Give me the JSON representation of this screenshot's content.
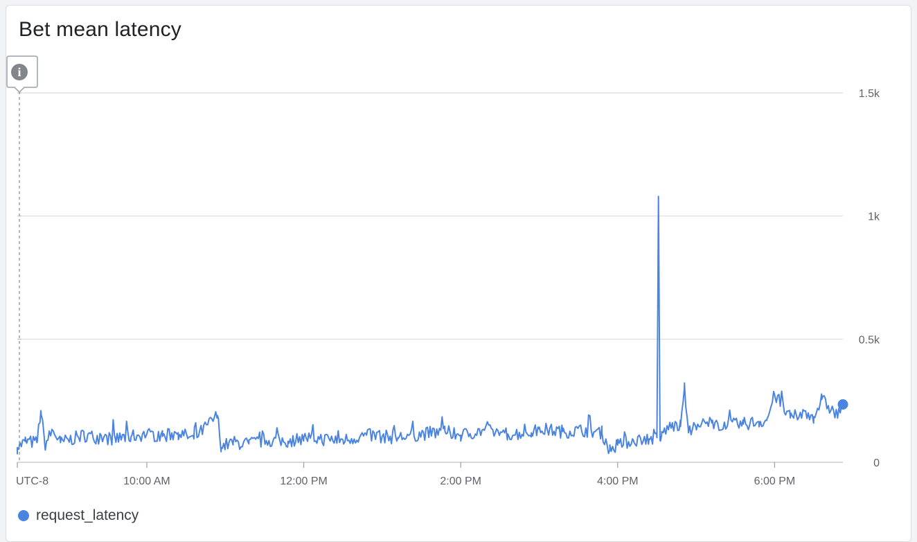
{
  "title": "Bet mean latency",
  "timezone_label": "UTC-8",
  "colors": {
    "series": "#4a84e0",
    "grid": "#dadce0",
    "text": "#5f6368",
    "info_icon": "#80868b"
  },
  "info_icon": "info-icon",
  "chart_data": {
    "type": "line",
    "x_range": [
      "8:21 AM",
      "6:52 PM"
    ],
    "x_ticks": [
      "10:00 AM",
      "12:00 PM",
      "2:00 PM",
      "4:00 PM",
      "6:00 PM"
    ],
    "x_tick_hours": [
      10,
      12,
      14,
      16,
      18
    ],
    "x_start_hour": 8.35,
    "x_end_hour": 18.87,
    "y_ticks": [
      "0",
      "0.5k",
      "1k",
      "1.5k"
    ],
    "y_tick_values": [
      0,
      500,
      1000,
      1500
    ],
    "ylim": [
      0,
      1500
    ],
    "y_axis_position": "right",
    "grid": true,
    "legend_position": "bottom-left",
    "series": [
      {
        "name": "request_latency",
        "x_hours": [
          8.35,
          8.45,
          8.6,
          8.65,
          8.7,
          8.8,
          8.9,
          9.0,
          9.2,
          9.4,
          9.6,
          9.8,
          10.0,
          10.2,
          10.4,
          10.6,
          10.9,
          10.95,
          11.0,
          11.1,
          11.3,
          11.5,
          11.8,
          12.0,
          12.2,
          12.5,
          12.8,
          13.0,
          13.2,
          13.5,
          13.8,
          14.0,
          14.3,
          14.6,
          14.9,
          15.0,
          15.3,
          15.6,
          15.8,
          15.9,
          16.0,
          16.2,
          16.4,
          16.5,
          16.52,
          16.54,
          16.56,
          16.6,
          16.7,
          16.8,
          16.85,
          16.9,
          17.0,
          17.2,
          17.4,
          17.6,
          17.8,
          17.9,
          18.0,
          18.2,
          18.4,
          18.5,
          18.6,
          18.8,
          18.87
        ],
        "values": [
          60,
          85,
          80,
          210,
          70,
          130,
          80,
          90,
          110,
          100,
          95,
          105,
          115,
          105,
          120,
          95,
          190,
          60,
          70,
          80,
          75,
          90,
          85,
          100,
          95,
          90,
          110,
          105,
          100,
          115,
          125,
          110,
          130,
          115,
          120,
          135,
          125,
          130,
          120,
          50,
          70,
          90,
          95,
          100,
          1080,
          90,
          110,
          130,
          150,
          145,
          300,
          135,
          140,
          160,
          150,
          155,
          165,
          170,
          275,
          180,
          200,
          185,
          255,
          190,
          235
        ]
      }
    ]
  },
  "legend": {
    "series_label": "request_latency"
  }
}
